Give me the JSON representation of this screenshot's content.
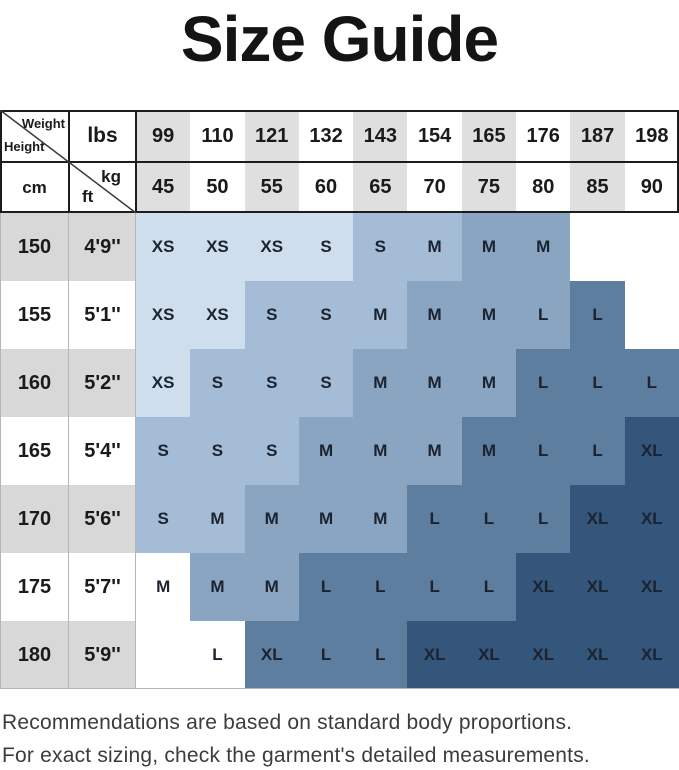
{
  "title": "Size Guide",
  "header": {
    "weight_label": "Weight",
    "height_label": "Height",
    "lbs_label": "lbs",
    "cm_label": "cm",
    "kg_label": "kg",
    "ft_label": "ft",
    "lbs_values": [
      "99",
      "110",
      "121",
      "132",
      "143",
      "154",
      "165",
      "176",
      "187",
      "198"
    ],
    "kg_values": [
      "45",
      "50",
      "55",
      "60",
      "65",
      "70",
      "75",
      "80",
      "85",
      "90"
    ]
  },
  "rows": [
    {
      "cm": "150",
      "ft": "4'9''",
      "cells": [
        {
          "size": "XS",
          "shade": "s1"
        },
        {
          "size": "XS",
          "shade": "s1"
        },
        {
          "size": "XS",
          "shade": "s1"
        },
        {
          "size": "S",
          "shade": "s1"
        },
        {
          "size": "S",
          "shade": "s2"
        },
        {
          "size": "M",
          "shade": "s2"
        },
        {
          "size": "M",
          "shade": "s3"
        },
        {
          "size": "M",
          "shade": "s3"
        },
        {
          "size": "",
          "shade": "none"
        },
        {
          "size": "",
          "shade": "none"
        }
      ]
    },
    {
      "cm": "155",
      "ft": "5'1''",
      "cells": [
        {
          "size": "XS",
          "shade": "s1"
        },
        {
          "size": "XS",
          "shade": "s1"
        },
        {
          "size": "S",
          "shade": "s2"
        },
        {
          "size": "S",
          "shade": "s2"
        },
        {
          "size": "M",
          "shade": "s2"
        },
        {
          "size": "M",
          "shade": "s3"
        },
        {
          "size": "M",
          "shade": "s3"
        },
        {
          "size": "L",
          "shade": "s3"
        },
        {
          "size": "L",
          "shade": "s4"
        },
        {
          "size": "",
          "shade": "none"
        }
      ]
    },
    {
      "cm": "160",
      "ft": "5'2''",
      "cells": [
        {
          "size": "XS",
          "shade": "s1"
        },
        {
          "size": "S",
          "shade": "s2"
        },
        {
          "size": "S",
          "shade": "s2"
        },
        {
          "size": "S",
          "shade": "s2"
        },
        {
          "size": "M",
          "shade": "s3"
        },
        {
          "size": "M",
          "shade": "s3"
        },
        {
          "size": "M",
          "shade": "s3"
        },
        {
          "size": "L",
          "shade": "s4"
        },
        {
          "size": "L",
          "shade": "s4"
        },
        {
          "size": "L",
          "shade": "s4"
        }
      ]
    },
    {
      "cm": "165",
      "ft": "5'4''",
      "cells": [
        {
          "size": "S",
          "shade": "s2"
        },
        {
          "size": "S",
          "shade": "s2"
        },
        {
          "size": "S",
          "shade": "s2"
        },
        {
          "size": "M",
          "shade": "s3"
        },
        {
          "size": "M",
          "shade": "s3"
        },
        {
          "size": "M",
          "shade": "s3"
        },
        {
          "size": "M",
          "shade": "s4"
        },
        {
          "size": "L",
          "shade": "s4"
        },
        {
          "size": "L",
          "shade": "s4"
        },
        {
          "size": "XL",
          "shade": "s5"
        }
      ]
    },
    {
      "cm": "170",
      "ft": "5'6''",
      "cells": [
        {
          "size": "S",
          "shade": "s2"
        },
        {
          "size": "M",
          "shade": "s2"
        },
        {
          "size": "M",
          "shade": "s3"
        },
        {
          "size": "M",
          "shade": "s3"
        },
        {
          "size": "M",
          "shade": "s3"
        },
        {
          "size": "L",
          "shade": "s4"
        },
        {
          "size": "L",
          "shade": "s4"
        },
        {
          "size": "L",
          "shade": "s4"
        },
        {
          "size": "XL",
          "shade": "s5"
        },
        {
          "size": "XL",
          "shade": "s5"
        }
      ]
    },
    {
      "cm": "175",
      "ft": "5'7''",
      "cells": [
        {
          "size": "M",
          "shade": "none"
        },
        {
          "size": "M",
          "shade": "s3"
        },
        {
          "size": "M",
          "shade": "s3"
        },
        {
          "size": "L",
          "shade": "s4"
        },
        {
          "size": "L",
          "shade": "s4"
        },
        {
          "size": "L",
          "shade": "s4"
        },
        {
          "size": "L",
          "shade": "s4"
        },
        {
          "size": "XL",
          "shade": "s5"
        },
        {
          "size": "XL",
          "shade": "s5"
        },
        {
          "size": "XL",
          "shade": "s5"
        }
      ]
    },
    {
      "cm": "180",
      "ft": "5'9''",
      "cells": [
        {
          "size": "",
          "shade": "none"
        },
        {
          "size": "L",
          "shade": "none"
        },
        {
          "size": "XL",
          "shade": "s4"
        },
        {
          "size": "L",
          "shade": "s4"
        },
        {
          "size": "L",
          "shade": "s4"
        },
        {
          "size": "XL",
          "shade": "s5"
        },
        {
          "size": "XL",
          "shade": "s5"
        },
        {
          "size": "XL",
          "shade": "s5"
        },
        {
          "size": "XL",
          "shade": "s5"
        },
        {
          "size": "XL",
          "shade": "s5"
        }
      ]
    }
  ],
  "colors": {
    "s1": "#cfdeed",
    "s2": "#a4bcd5",
    "s3": "#89a5c2",
    "s4": "#5e7e9f",
    "s5": "#33567a",
    "none": "#ffffff",
    "header_gray": "#dfdfdf",
    "label_gray": "#d8d8d8",
    "letter": "#1b2330"
  },
  "footer": {
    "line1": "Recommendations are based on standard body proportions.",
    "line2": "For exact sizing, check the garment's detailed measurements."
  },
  "chart_data": {
    "type": "heatmap",
    "title": "Size Guide",
    "x_axis": {
      "label": "Weight",
      "units": [
        "lbs",
        "kg"
      ],
      "lbs": [
        99,
        110,
        121,
        132,
        143,
        154,
        165,
        176,
        187,
        198
      ],
      "kg": [
        45,
        50,
        55,
        60,
        65,
        70,
        75,
        80,
        85,
        90
      ]
    },
    "y_axis": {
      "label": "Height",
      "units": [
        "cm",
        "ft"
      ],
      "cm": [
        150,
        155,
        160,
        165,
        170,
        175,
        180
      ],
      "ft": [
        "4'9''",
        "5'1''",
        "5'2''",
        "5'4''",
        "5'6''",
        "5'7''",
        "5'9''"
      ]
    },
    "cells": [
      [
        "XS",
        "XS",
        "XS",
        "S",
        "S",
        "M",
        "M",
        "M",
        "",
        ""
      ],
      [
        "XS",
        "XS",
        "S",
        "S",
        "M",
        "M",
        "M",
        "L",
        "L",
        ""
      ],
      [
        "XS",
        "S",
        "S",
        "S",
        "M",
        "M",
        "M",
        "L",
        "L",
        "L"
      ],
      [
        "S",
        "S",
        "S",
        "M",
        "M",
        "M",
        "M",
        "L",
        "L",
        "XL"
      ],
      [
        "S",
        "M",
        "M",
        "M",
        "M",
        "L",
        "L",
        "L",
        "XL",
        "XL"
      ],
      [
        "M",
        "M",
        "M",
        "L",
        "L",
        "L",
        "L",
        "XL",
        "XL",
        "XL"
      ],
      [
        "",
        "L",
        "XL",
        "L",
        "L",
        "XL",
        "XL",
        "XL",
        "XL",
        "XL"
      ]
    ],
    "size_shade_legend": {
      "XS": "#cfdeed",
      "S": "#a4bcd5",
      "M": "#89a5c2",
      "L": "#5e7e9f",
      "XL": "#33567a"
    },
    "note": "Recommendations are based on standard body proportions. For exact sizing, check the garment's detailed measurements."
  }
}
